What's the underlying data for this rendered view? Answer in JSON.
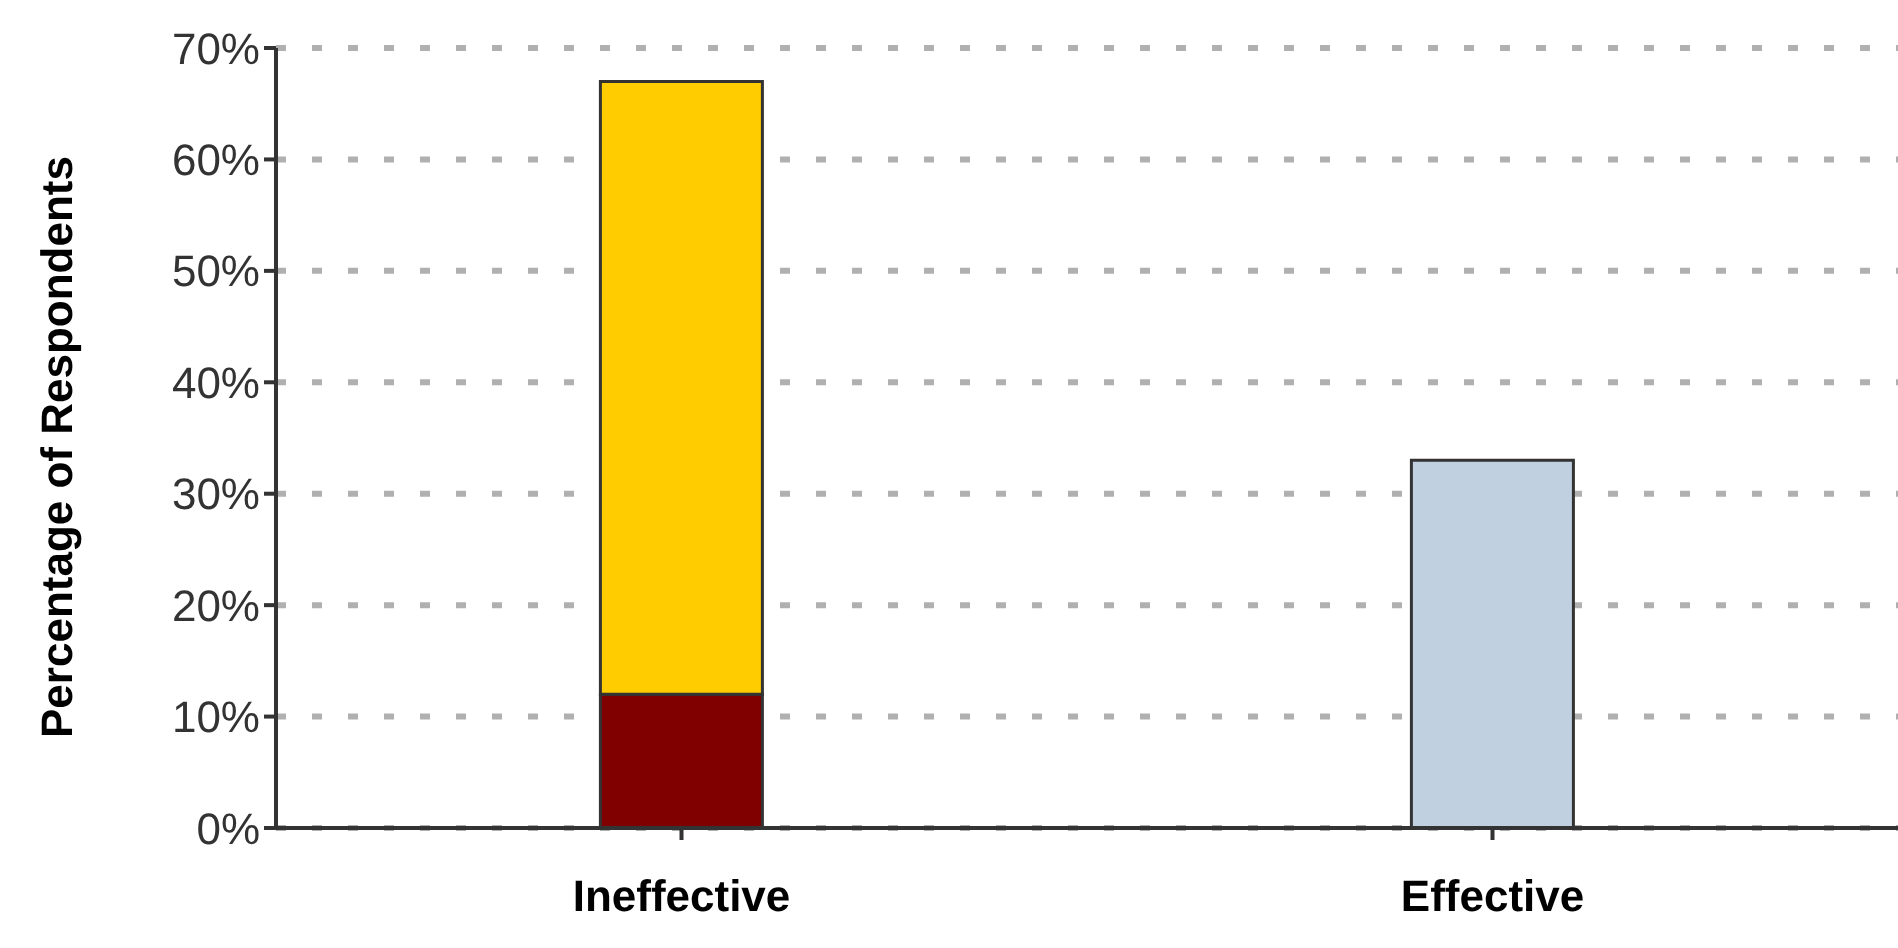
{
  "chart_data": {
    "type": "bar",
    "stacked": true,
    "ylabel": "Percentage of Respondents",
    "categories": [
      "Ineffective",
      "Effective"
    ],
    "series": [
      {
        "color": "#800000",
        "values": [
          12,
          null
        ]
      },
      {
        "color": "#ffcc00",
        "values": [
          55,
          null
        ]
      },
      {
        "color": "#c0d0e0",
        "values": [
          null,
          33
        ]
      }
    ],
    "ylim": [
      0,
      70
    ],
    "yticks": [
      {
        "value": 0,
        "label": "0%"
      },
      {
        "value": 10,
        "label": "10%"
      },
      {
        "value": 20,
        "label": "20%"
      },
      {
        "value": 30,
        "label": "30%"
      },
      {
        "value": 40,
        "label": "40%"
      },
      {
        "value": 50,
        "label": "50%"
      },
      {
        "value": 60,
        "label": "60%"
      },
      {
        "value": 70,
        "label": "70%"
      }
    ],
    "grid": "y",
    "legend": false
  }
}
